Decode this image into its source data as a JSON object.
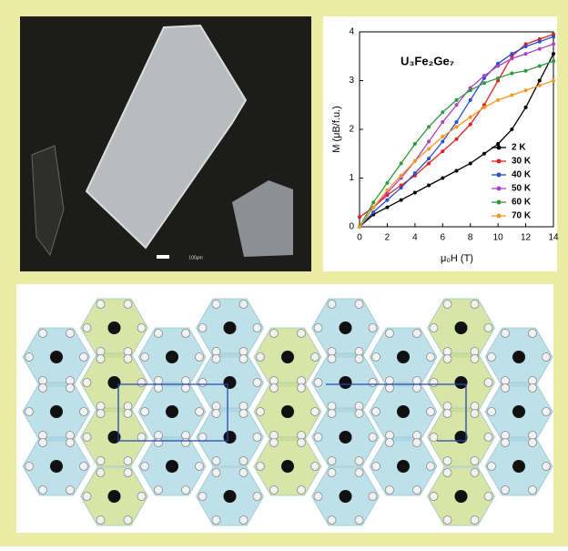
{
  "chart_data": {
    "type": "line",
    "title": "U₃Fe₂Ge₇",
    "x_label": "μ₀H (T)",
    "y_label": "M (μB/f.u.)",
    "scale_label": "100μm",
    "x": [
      0,
      1,
      2,
      3,
      4,
      5,
      6,
      7,
      8,
      9,
      10,
      11,
      12,
      13,
      14
    ],
    "series": [
      {
        "name": "2 K",
        "color": "#000000",
        "values": [
          0,
          0.25,
          0.4,
          0.55,
          0.7,
          0.85,
          1.0,
          1.15,
          1.3,
          1.5,
          1.7,
          2.0,
          2.45,
          3.0,
          3.55
        ]
      },
      {
        "name": "30 K",
        "color": "#e0201c",
        "values": [
          0.2,
          0.4,
          0.65,
          0.85,
          1.05,
          1.3,
          1.55,
          1.8,
          2.1,
          2.5,
          3.0,
          3.5,
          3.75,
          3.85,
          3.95
        ]
      },
      {
        "name": "40 K",
        "color": "#2a4fd0",
        "values": [
          0,
          0.3,
          0.55,
          0.8,
          1.1,
          1.4,
          1.75,
          2.15,
          2.6,
          3.05,
          3.35,
          3.55,
          3.7,
          3.8,
          3.9
        ]
      },
      {
        "name": "50 K",
        "color": "#b040c8",
        "values": [
          0,
          0.4,
          0.7,
          1.0,
          1.35,
          1.75,
          2.15,
          2.5,
          2.85,
          3.1,
          3.3,
          3.45,
          3.55,
          3.65,
          3.75
        ]
      },
      {
        "name": "60 K",
        "color": "#2f9a3a",
        "values": [
          0,
          0.5,
          0.9,
          1.3,
          1.7,
          2.05,
          2.35,
          2.6,
          2.8,
          2.95,
          3.05,
          3.15,
          3.2,
          3.3,
          3.4
        ]
      },
      {
        "name": "70 K",
        "color": "#f59a1e",
        "values": [
          0,
          0.4,
          0.75,
          1.05,
          1.35,
          1.6,
          1.85,
          2.05,
          2.25,
          2.45,
          2.6,
          2.7,
          2.8,
          2.9,
          3.0
        ]
      }
    ],
    "xlim": [
      0,
      14
    ],
    "xticks": [
      0,
      2,
      4,
      6,
      8,
      10,
      12,
      14
    ],
    "ylim": [
      0,
      4
    ],
    "yticks": [
      0,
      1,
      2,
      3,
      4
    ],
    "legend": "lower right"
  }
}
